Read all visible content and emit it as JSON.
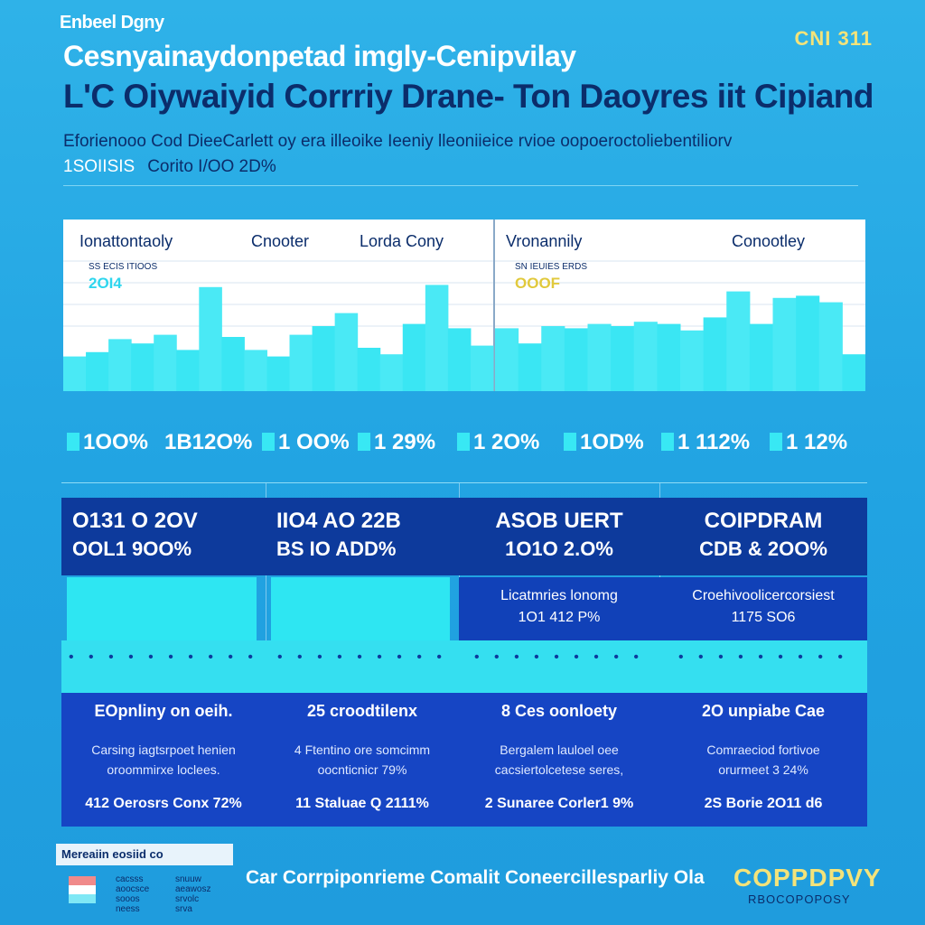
{
  "header": {
    "topbar": "Enbeel Dgny",
    "badge": "CNI 311",
    "title_line1": "Cesnyainaydonpetad imgly-Cenipvilay",
    "title_line2": "L'C Oiywaiyid Corrriy Drane- Ton Daoyres iit Cipiand",
    "subtitle": "Eforienooo Cod DieeCarlett oy era illeoike Ieeniy lleoniieice rvioe oopoeroctoliebentiliorv",
    "subline_num": "1SOIISIS",
    "subline_text": "Corito I/OO  2D%"
  },
  "chart_data": [
    {
      "type": "bar",
      "title": "Ionattontaoly",
      "headers": [
        "Ionattontaoly",
        "Cnooter",
        "Lorda Cony"
      ],
      "caption": "SS ECIS ITIOOS",
      "value_label": "2OI4",
      "values": [
        32,
        36,
        48,
        44,
        52,
        38,
        96,
        50,
        38,
        32,
        52,
        60,
        72,
        40,
        34,
        62,
        98,
        58,
        42
      ],
      "ylim": [
        0,
        120
      ]
    },
    {
      "type": "bar",
      "title": "Vronannily",
      "headers": [
        "Vronannily",
        "Conootley"
      ],
      "caption": "SN IEUIES ERDS",
      "value_label": "OOOF",
      "values": [
        58,
        44,
        60,
        58,
        62,
        60,
        64,
        62,
        56,
        68,
        92,
        62,
        86,
        88,
        82,
        34
      ],
      "ylim": [
        0,
        120
      ]
    }
  ],
  "percent_row": [
    "1OO%",
    "1B12O%",
    "1 OO%",
    "1 29%",
    "1 2O%",
    "1OD%",
    "1 112%",
    "1 12%"
  ],
  "cards": [
    {
      "h1": "O131 O 2OV",
      "h2": "OOL1 9OO%",
      "mid1": "",
      "mid2": "",
      "lower_title": "EOpnliny on oeih.",
      "lower_desc1": "Carsing iagtsrpoet henien",
      "lower_desc2": "oroommirxe loclees.",
      "lower_foot": "412 Oerosrs Conx 72%"
    },
    {
      "h1": "IIO4 AO 22B",
      "h2": "BS IO ADD%",
      "mid1": "",
      "mid2": "",
      "lower_title": "25 croodtilenx",
      "lower_desc1": "4 Ftentino ore somcimm",
      "lower_desc2": "oocnticnicr 79%",
      "lower_foot": "11 Staluae Q 2111%"
    },
    {
      "h1": "ASOB UERT",
      "h2": "1O1O 2.O%",
      "mid1": "Licatmries lonomg",
      "mid2": "1O1 412 P%",
      "lower_title": "8 Ces oonloety",
      "lower_desc1": "Bergalem lauloel oee",
      "lower_desc2": "cacsiertolcetese seres,",
      "lower_foot": "2 Sunaree Corler1 9%"
    },
    {
      "h1": "COIPDRAM",
      "h2": "CDB & 2OO%",
      "mid1": "Croehivoolicercorsiest",
      "mid2": "1175 SO6",
      "lower_title": "2O unpiabe Cae",
      "lower_desc1": "Comraeciod fortivoe",
      "lower_desc2": "orurmeet 3 24%",
      "lower_foot": "2S Borie 2O11 d6"
    }
  ],
  "legend": {
    "title": "Mereaiin eosiid co",
    "col1": [
      "cacsss",
      "aoocsce",
      "sooos",
      "neess"
    ],
    "col2": [
      "snuuw",
      "aeawosz",
      "srvolc",
      "srva"
    ],
    "colors": [
      "#f08a8a",
      "#ffffff",
      "#7fe8f5"
    ]
  },
  "footer": {
    "text": "Car Corrpiponrieme Comalit Coneercillesparliy Ola",
    "brand": "COPPDPVY",
    "brand_sub": "RBOCOPOPOSY"
  }
}
